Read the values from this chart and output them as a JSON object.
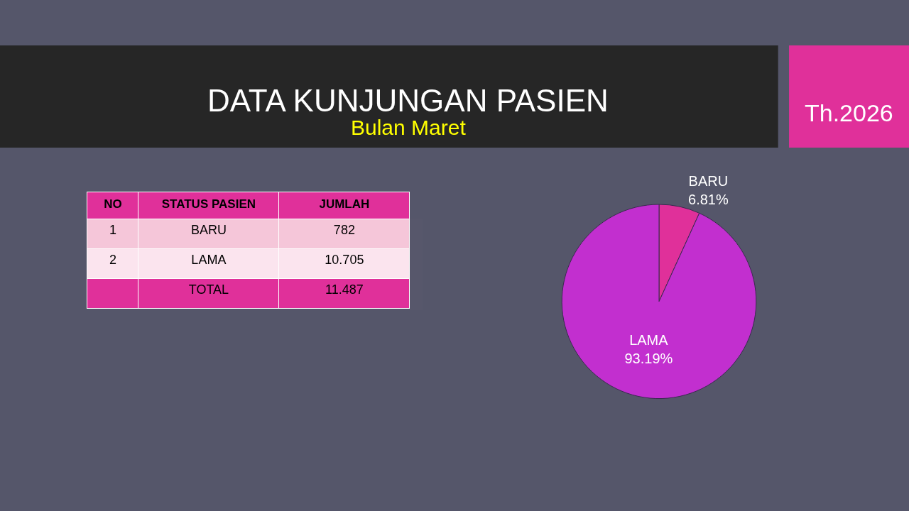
{
  "chart_data": {
    "type": "pie",
    "title": "DATA KUNJUNGAN PASIEN",
    "subtitle": "Bulan Maret",
    "annotations": [
      "Th.2026",
      "NO",
      "STATUS PASIEN",
      "JUMLAH",
      "1",
      "2",
      "TOTAL",
      "11.487",
      "782",
      "10.705"
    ],
    "categories": [
      "BARU",
      "LAMA"
    ],
    "values": [
      6.81,
      93.19
    ],
    "value_labels": [
      "6.81%",
      "93.19%"
    ],
    "colors": [
      "#e0309a",
      "#c22fcf"
    ],
    "legend": false
  }
}
